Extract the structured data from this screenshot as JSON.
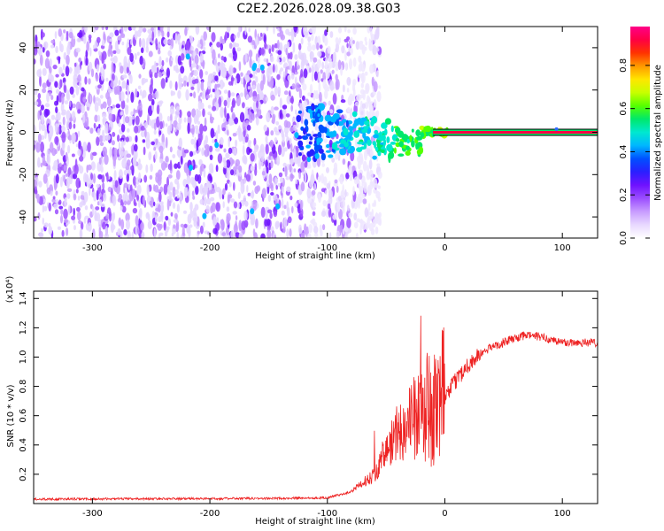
{
  "title": "C2E2.2026.028.09.38.G03",
  "spectrogram": {
    "ylabel": "Frequency (Hz)",
    "xlabel": "Height of straight line (km)",
    "xlim": [
      -350,
      130
    ],
    "ylim": [
      -50,
      50
    ],
    "xticks": [
      -300,
      -200,
      -100,
      0,
      100
    ],
    "xtick_labels": [
      "-300",
      "-200",
      "-100",
      "0",
      "100"
    ],
    "yticks": [
      40,
      20,
      0,
      -20,
      -40
    ],
    "ytick_labels": [
      "40",
      "20",
      "0",
      "-20",
      "-40"
    ],
    "carrier_line_start_km": 5,
    "noise_edge_km": -80,
    "colorbar": {
      "label": "Normalized spectral amplitude",
      "ticks": [
        0.0,
        0.2,
        0.4,
        0.6,
        0.8
      ],
      "tick_labels": [
        "0.0",
        "0.2",
        "0.4",
        "0.6",
        "0.8"
      ],
      "colors": [
        "#ffffff",
        "#e8d8ff",
        "#c89cff",
        "#9b4dff",
        "#6f12ff",
        "#2a1fff",
        "#0050ff",
        "#00b7ff",
        "#00e8d0",
        "#00e86a",
        "#55ff00",
        "#c8ff00",
        "#ffe600",
        "#ff9900",
        "#ff3300",
        "#ff0044",
        "#ff0088"
      ]
    }
  },
  "snr": {
    "ylabel": "SNR (10 * v/v)",
    "xlabel": "Height of straight line (km)",
    "multiplier_label": "(x10⁴)",
    "xlim": [
      -350,
      130
    ],
    "ylim": [
      0,
      1.45
    ],
    "xticks": [
      -300,
      -200,
      -100,
      0,
      100
    ],
    "xtick_labels": [
      "-300",
      "-200",
      "-100",
      "0",
      "100"
    ],
    "yticks": [
      0.2,
      0.4,
      0.6,
      0.8,
      1.0,
      1.2,
      1.4
    ],
    "ytick_labels": [
      "0.2",
      "0.4",
      "0.6",
      "0.8",
      "1.0",
      "1.2",
      "1.4"
    ],
    "line_color": "#ee2222",
    "profile_km": [
      -350,
      -150,
      -100,
      -80,
      -60,
      -50,
      -40,
      -30,
      -20,
      -10,
      0,
      10,
      20,
      30,
      40,
      50,
      60,
      70,
      80,
      90,
      100,
      110,
      120,
      130
    ],
    "profile_snr": [
      0.03,
      0.035,
      0.04,
      0.08,
      0.2,
      0.35,
      0.5,
      0.55,
      0.6,
      0.65,
      0.72,
      0.85,
      0.95,
      1.02,
      1.07,
      1.1,
      1.13,
      1.15,
      1.14,
      1.12,
      1.1,
      1.1,
      1.1,
      1.1
    ]
  }
}
